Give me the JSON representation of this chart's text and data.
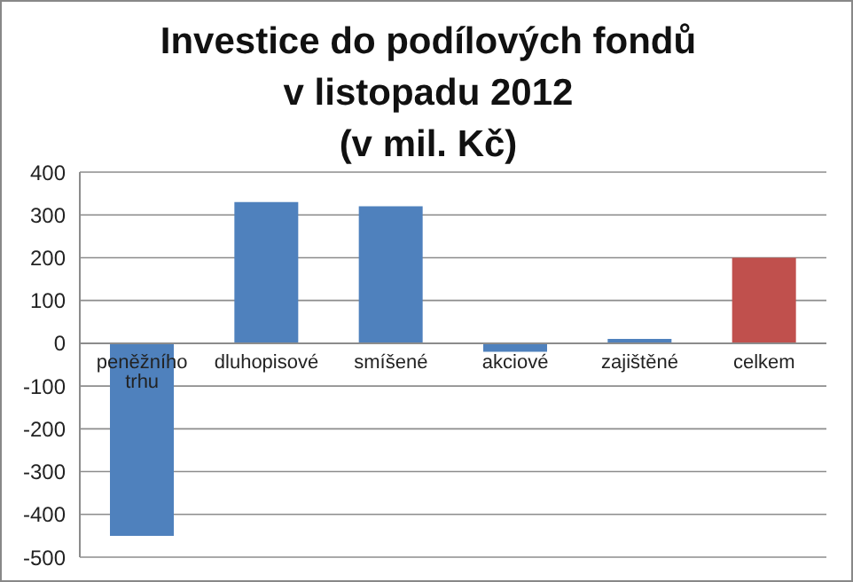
{
  "chart_data": {
    "type": "bar",
    "title": "Investice do podílových fondů\nv listopadu 2012\n(v mil. Kč)",
    "categories": [
      "peněžního trhu",
      "dluhopisové",
      "smíšené",
      "akciové",
      "zajištěné",
      "celkem"
    ],
    "values": [
      -450,
      330,
      320,
      -20,
      10,
      200
    ],
    "colors": [
      "#4f81bd",
      "#4f81bd",
      "#4f81bd",
      "#4f81bd",
      "#4f81bd",
      "#c0504d"
    ],
    "ylim": [
      -500,
      400
    ],
    "yticks": [
      -500,
      -400,
      -300,
      -200,
      -100,
      0,
      100,
      200,
      300,
      400
    ],
    "grid": "y"
  }
}
